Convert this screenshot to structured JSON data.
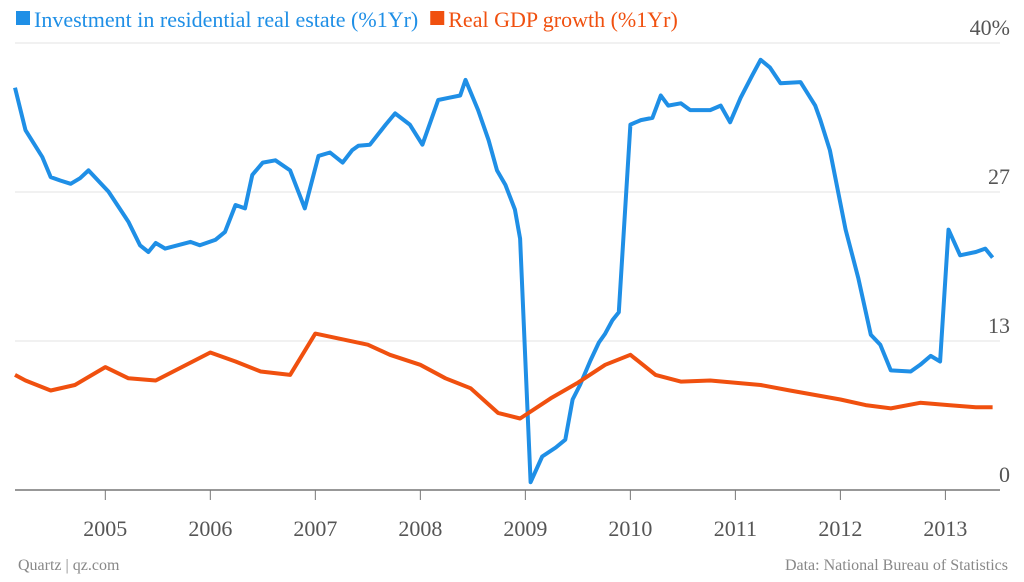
{
  "chart_data": {
    "type": "line",
    "legend": "top-left",
    "grid": true,
    "xlim": [
      2004.14,
      2013.52
    ],
    "xticks": [
      2005,
      2006,
      2007,
      2008,
      2009,
      2010,
      2011,
      2012,
      2013
    ],
    "ylim": [
      0,
      40
    ],
    "yticks": [
      0,
      {
        "value": 13.33,
        "label": "13"
      },
      {
        "value": 26.67,
        "label": "27"
      },
      {
        "value": 40,
        "label": "40%"
      }
    ],
    "series": [
      {
        "name": "Investment in residential real estate (%1Yr)",
        "color": "#1f8fe6",
        "x": [
          2004.14,
          2004.24,
          2004.4,
          2004.48,
          2004.57,
          2004.67,
          2004.76,
          2004.84,
          2005.03,
          2005.22,
          2005.33,
          2005.41,
          2005.48,
          2005.57,
          2005.81,
          2005.9,
          2006.05,
          2006.14,
          2006.24,
          2006.33,
          2006.4,
          2006.5,
          2006.62,
          2006.76,
          2006.9,
          2007.03,
          2007.14,
          2007.26,
          2007.35,
          2007.41,
          2007.52,
          2007.67,
          2007.76,
          2007.9,
          2008.02,
          2008.17,
          2008.27,
          2008.38,
          2008.43,
          2008.55,
          2008.65,
          2008.73,
          2008.81,
          2008.9,
          2008.95,
          2009.05,
          2009.16,
          2009.29,
          2009.38,
          2009.45,
          2009.52,
          2009.62,
          2009.7,
          2009.76,
          2009.83,
          2009.89,
          2010.0,
          2010.1,
          2010.21,
          2010.29,
          2010.36,
          2010.48,
          2010.57,
          2010.76,
          2010.86,
          2010.95,
          2011.05,
          2011.16,
          2011.24,
          2011.33,
          2011.43,
          2011.62,
          2011.7,
          2011.76,
          2011.81,
          2011.9,
          2012.05,
          2012.17,
          2012.29,
          2012.38,
          2012.48,
          2012.67,
          2012.76,
          2012.86,
          2012.95,
          2013.03,
          2013.14,
          2013.29,
          2013.38,
          2013.45
        ],
        "values": [
          36.0,
          32.2,
          29.8,
          28.0,
          27.7,
          27.4,
          27.9,
          28.6,
          26.7,
          24.0,
          21.9,
          21.3,
          22.1,
          21.6,
          22.2,
          21.9,
          22.4,
          23.1,
          25.5,
          25.2,
          28.2,
          29.3,
          29.5,
          28.6,
          25.2,
          29.9,
          30.2,
          29.3,
          30.4,
          30.8,
          30.9,
          32.7,
          33.7,
          32.7,
          30.9,
          34.9,
          35.1,
          35.3,
          36.7,
          34.0,
          31.3,
          28.6,
          27.3,
          25.1,
          22.5,
          0.7,
          3.0,
          3.8,
          4.5,
          8.1,
          9.4,
          11.6,
          13.2,
          14.0,
          15.2,
          15.9,
          32.7,
          33.1,
          33.3,
          35.3,
          34.4,
          34.6,
          34.0,
          34.0,
          34.4,
          32.9,
          35.1,
          37.1,
          38.5,
          37.8,
          36.4,
          36.5,
          35.3,
          34.4,
          33.1,
          30.4,
          23.3,
          19.0,
          13.9,
          13.0,
          10.7,
          10.6,
          11.2,
          12.0,
          11.5,
          23.3,
          21.0,
          21.3,
          21.6,
          20.8
        ]
      },
      {
        "name": "Real GDP growth (%1Yr)",
        "color": "#f0500f",
        "x": [
          2004.14,
          2004.24,
          2004.48,
          2004.71,
          2005.0,
          2005.22,
          2005.48,
          2006.0,
          2006.24,
          2006.48,
          2006.76,
          2007.0,
          2007.5,
          2007.71,
          2008.0,
          2008.24,
          2008.48,
          2008.74,
          2008.95,
          2009.24,
          2009.5,
          2009.76,
          2010.0,
          2010.24,
          2010.48,
          2010.76,
          2011.24,
          2011.52,
          2012.0,
          2012.24,
          2012.48,
          2012.76,
          2013.03,
          2013.29,
          2013.45
        ],
        "values": [
          10.3,
          9.8,
          8.9,
          9.4,
          11.0,
          10.0,
          9.8,
          12.3,
          11.5,
          10.6,
          10.3,
          14.0,
          13.0,
          12.1,
          11.2,
          10.0,
          9.1,
          6.9,
          6.4,
          8.2,
          9.6,
          11.2,
          12.1,
          10.3,
          9.7,
          9.8,
          9.4,
          8.9,
          8.1,
          7.6,
          7.3,
          7.8,
          7.6,
          7.4,
          7.4
        ]
      }
    ],
    "source": "Data: National Bureau of Statistics",
    "credit": "Quartz | qz.com"
  }
}
